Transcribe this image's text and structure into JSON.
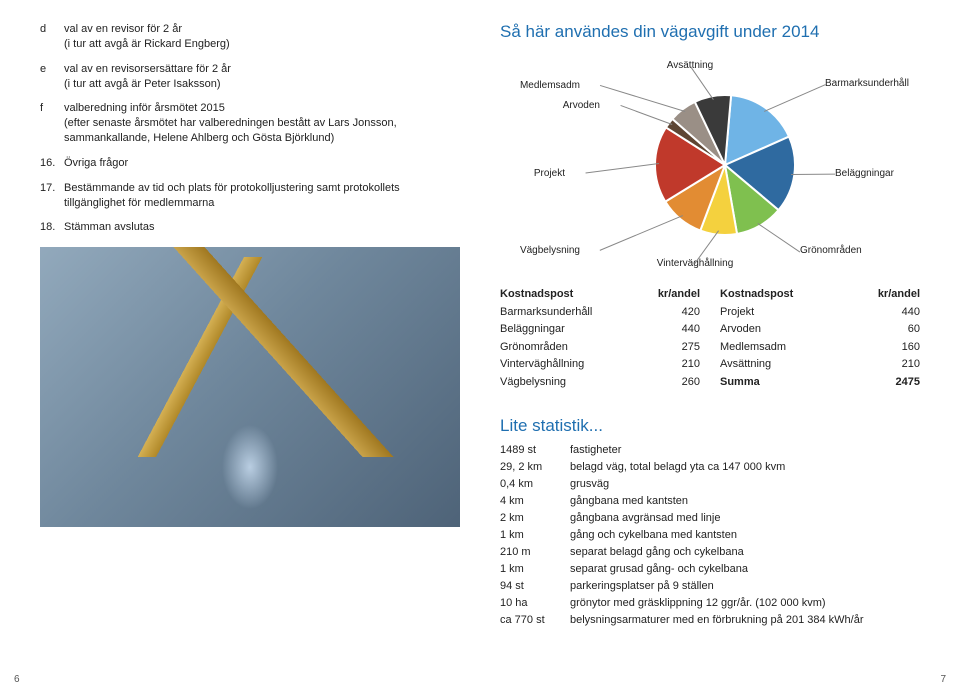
{
  "left": {
    "items": [
      {
        "letter": "d",
        "text": "val av en revisor för 2 år\n(i tur att avgå är Rickard Engberg)"
      },
      {
        "letter": "e",
        "text": "val av en revisorsersättare för 2 år\n(i tur att avgå är Peter Isaksson)"
      },
      {
        "letter": "f",
        "text": "valberedning inför årsmötet 2015\n(efter senaste årsmötet har valberedningen bestått av Lars Jonsson, sammankallande, Helene Ahlberg och Gösta Björklund)"
      }
    ],
    "num_items": [
      {
        "num": "16.",
        "text": "Övriga frågor"
      },
      {
        "num": "17.",
        "text": "Bestämmande av tid och plats för protokolljustering samt protokollets tillgänglighet för medlemmarna"
      },
      {
        "num": "18.",
        "text": "Stämman avslutas"
      }
    ]
  },
  "right": {
    "chart_title": "Så här användes din vägavgift under 2014",
    "pie": {
      "type": "pie",
      "total": 2475,
      "slices": [
        {
          "label": "Barmarksunderhåll",
          "value": 420,
          "color": "#6fb4e6"
        },
        {
          "label": "Beläggningar",
          "value": 440,
          "color": "#2f6aa0"
        },
        {
          "label": "Grönområden",
          "value": 275,
          "color": "#7fc04f"
        },
        {
          "label": "Vinterväghållning",
          "value": 210,
          "color": "#f4d13e"
        },
        {
          "label": "Vägbelysning",
          "value": 260,
          "color": "#e28c33"
        },
        {
          "label": "Projekt",
          "value": 440,
          "color": "#c0392b"
        },
        {
          "label": "Arvoden",
          "value": 60,
          "color": "#5e4634"
        },
        {
          "label": "Medlemsadm",
          "value": 160,
          "color": "#9a8f86"
        },
        {
          "label": "Avsättning",
          "value": 210,
          "color": "#3a3a3a"
        }
      ],
      "gap_color": "#ffffff",
      "gap_width": 2,
      "background": "#ffffff",
      "label_fontsize": 10
    },
    "table": {
      "headers": [
        "Kostnadspost",
        "kr/andel",
        "Kostnadspost",
        "kr/andel"
      ],
      "left_rows": [
        [
          "Barmarksunderhåll",
          "420"
        ],
        [
          "Beläggningar",
          "440"
        ],
        [
          "Grönområden",
          "275"
        ],
        [
          "Vinterväghållning",
          "210"
        ],
        [
          "Vägbelysning",
          "260"
        ]
      ],
      "right_rows": [
        [
          "Projekt",
          "440"
        ],
        [
          "Arvoden",
          "60"
        ],
        [
          "Medlemsadm",
          "160"
        ],
        [
          "Avsättning",
          "210"
        ],
        [
          "Summa",
          "2475"
        ]
      ]
    },
    "stats": {
      "title": "Lite statistik...",
      "rows": [
        [
          "1489 st",
          "fastigheter"
        ],
        [
          "29, 2 km",
          "belagd väg, total belagd yta ca 147 000 kvm"
        ],
        [
          "0,4 km",
          "grusväg"
        ],
        [
          "4 km",
          "gångbana med kantsten"
        ],
        [
          "2 km",
          "gångbana avgränsad med linje"
        ],
        [
          "1 km",
          "gång och cykelbana med kantsten"
        ],
        [
          "210 m",
          "separat belagd gång och cykelbana"
        ],
        [
          "1 km",
          "separat grusad gång- och cykelbana"
        ],
        [
          "94 st",
          "parkeringsplatser på 9 ställen"
        ],
        [
          "10 ha",
          "grönytor med gräsklippning 12 ggr/år. (102 000 kvm)"
        ],
        [
          "ca 770 st",
          "belysningsarmaturer med en förbrukning på 201 384 kWh/år"
        ]
      ]
    }
  },
  "page_left": "6",
  "page_right": "7"
}
